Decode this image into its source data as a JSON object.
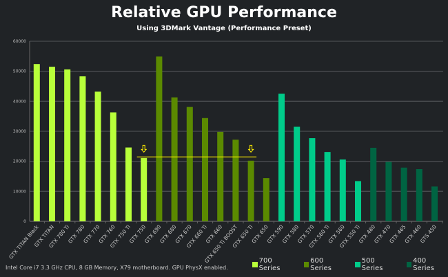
{
  "chart_data": {
    "type": "bar",
    "title": "Relative GPU Performance",
    "subtitle": "Using 3DMark Vantage (Performance Preset)",
    "ylim": [
      0,
      60000
    ],
    "yticks": [
      "0",
      "10000",
      "20000",
      "30000",
      "40000",
      "50000",
      "60000"
    ],
    "grid": true,
    "legend_position": "bottom-right",
    "categories": [
      "GTX TITAN Black",
      "GTX TITAN",
      "GTX 780 Ti",
      "GTX 780",
      "GTX 770",
      "GTX 760",
      "GTX 750 Ti",
      "GTX 750",
      "GTX 690",
      "GTX 680",
      "GTX 670",
      "GTX 660 Ti",
      "GTX 660",
      "GTX 650 Ti BOOST",
      "GTX 650 Ti",
      "GTX 650",
      "GTX 590",
      "GTX 580",
      "GTX 570",
      "GTX 560 Ti",
      "GTX 560",
      "GTX 550 Ti",
      "GTX 480",
      "GTX 470",
      "GTX 465",
      "GTX 460",
      "GTS 450"
    ],
    "values": [
      52400,
      51500,
      50600,
      48300,
      43200,
      36300,
      24600,
      21100,
      54900,
      41300,
      38100,
      34400,
      29800,
      27200,
      20200,
      14400,
      42500,
      31500,
      27700,
      23100,
      20600,
      13400,
      24500,
      19800,
      17900,
      17400,
      11600
    ],
    "series_of_bar": [
      0,
      0,
      0,
      0,
      0,
      0,
      0,
      0,
      1,
      1,
      1,
      1,
      1,
      1,
      1,
      1,
      2,
      2,
      2,
      2,
      2,
      2,
      3,
      3,
      3,
      3,
      3
    ],
    "series": [
      {
        "name": "700 Series",
        "color": "#b8ff3a"
      },
      {
        "name": "600 Series",
        "color": "#5b8a00"
      },
      {
        "name": "500 Series",
        "color": "#00cc8a"
      },
      {
        "name": "400 Series",
        "color": "#006442"
      }
    ],
    "reference_line": {
      "value": 21450,
      "from": "GTX 750",
      "to": "GTX 650 Ti",
      "color": "#ffee00",
      "markers": [
        "GTX 750",
        "GTX 650 Ti"
      ]
    }
  },
  "footnote": "Intel Core i7 3.3 GHz CPU, 8 GB Memory, X79 motherboard. GPU PhysX enabled."
}
